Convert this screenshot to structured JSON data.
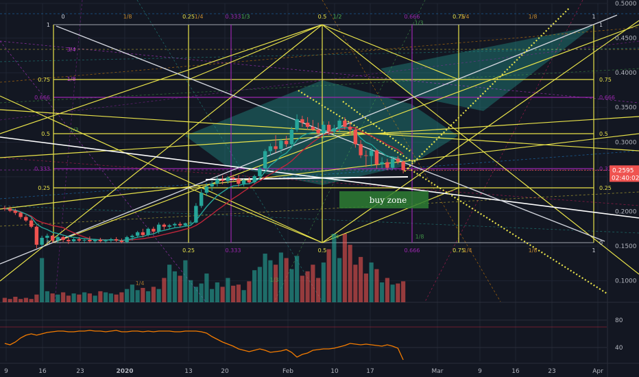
{
  "chart_data": {
    "type": "candlestick",
    "colors": {
      "background": "#131722",
      "grid": "#1f2433",
      "up": "#26a69a",
      "down": "#ef5350",
      "fib_grid": "#e9e34a",
      "sma": "#c0263a",
      "ema": "#26a69a",
      "rsi": "#f57c00",
      "trend_white": "#ffffff",
      "fan_fill": "#26a69a",
      "buy_zone_fill": "#2e7d32",
      "price_tag": "#ef5350",
      "midline_purple": "#9c27b0"
    },
    "x_axis": {
      "tick_labels": [
        "9",
        "16",
        "23",
        "2020",
        "13",
        "20",
        "Feb",
        "10",
        "17",
        "Mar",
        "9",
        "16",
        "23",
        "Apr"
      ]
    },
    "y_axis": {
      "tick_labels": [
        "0.5000",
        "0.4500",
        "0.4000",
        "0.3500",
        "0.3000",
        "0.2500",
        "0.2000",
        "0.1500",
        "0.1000"
      ],
      "ylim": [
        0.07,
        0.5
      ]
    },
    "rsi_axis": {
      "tick_labels": [
        "80",
        "40"
      ],
      "ylim": [
        20,
        100
      ]
    },
    "last_price": {
      "value": "0.2595",
      "countdown": "02:40:02"
    },
    "annotation_buy_zone": "buy zone",
    "fib_top_labels": [
      "0",
      "1/8",
      "0.25",
      "1/4",
      "0.333",
      "1/3",
      "0.5",
      "1/2",
      "0.666",
      "0.75",
      "1/4",
      "1/8",
      "1"
    ],
    "fib_bottom_labels": [
      "0.25",
      "0.333",
      "0.5",
      "0.666",
      "0.75",
      "1/4",
      "1/8",
      "1"
    ],
    "fib_left_labels": [
      "1",
      "0.75",
      "0.666",
      "0.5",
      "0.333",
      "0.25",
      "0"
    ],
    "fib_right_labels": [
      "1",
      "0.75",
      "0.666",
      "0.5",
      "0.333",
      "0.25",
      "0"
    ],
    "fib_extra_labels": [
      "3/4",
      "1/3",
      "1/8",
      "1/3",
      "1/8",
      "1/4",
      "1/3",
      "1/4"
    ],
    "candles": [
      {
        "i": 0,
        "o": 0.205,
        "h": 0.208,
        "l": 0.201,
        "c": 0.204
      },
      {
        "i": 1,
        "o": 0.204,
        "h": 0.207,
        "l": 0.199,
        "c": 0.201
      },
      {
        "i": 2,
        "o": 0.201,
        "h": 0.204,
        "l": 0.195,
        "c": 0.198
      },
      {
        "i": 3,
        "o": 0.198,
        "h": 0.2,
        "l": 0.189,
        "c": 0.192
      },
      {
        "i": 4,
        "o": 0.192,
        "h": 0.195,
        "l": 0.185,
        "c": 0.187
      },
      {
        "i": 5,
        "o": 0.187,
        "h": 0.19,
        "l": 0.176,
        "c": 0.178
      },
      {
        "i": 6,
        "o": 0.178,
        "h": 0.18,
        "l": 0.147,
        "c": 0.152
      },
      {
        "i": 7,
        "o": 0.152,
        "h": 0.165,
        "l": 0.149,
        "c": 0.162
      },
      {
        "i": 8,
        "o": 0.162,
        "h": 0.168,
        "l": 0.156,
        "c": 0.165
      },
      {
        "i": 9,
        "o": 0.165,
        "h": 0.166,
        "l": 0.155,
        "c": 0.158
      },
      {
        "i": 10,
        "o": 0.158,
        "h": 0.166,
        "l": 0.154,
        "c": 0.163
      },
      {
        "i": 11,
        "o": 0.163,
        "h": 0.165,
        "l": 0.156,
        "c": 0.159
      },
      {
        "i": 12,
        "o": 0.159,
        "h": 0.163,
        "l": 0.153,
        "c": 0.157
      },
      {
        "i": 13,
        "o": 0.157,
        "h": 0.162,
        "l": 0.155,
        "c": 0.16
      },
      {
        "i": 14,
        "o": 0.16,
        "h": 0.163,
        "l": 0.156,
        "c": 0.158
      },
      {
        "i": 15,
        "o": 0.158,
        "h": 0.161,
        "l": 0.154,
        "c": 0.159
      },
      {
        "i": 16,
        "o": 0.159,
        "h": 0.164,
        "l": 0.155,
        "c": 0.157
      },
      {
        "i": 17,
        "o": 0.157,
        "h": 0.16,
        "l": 0.154,
        "c": 0.159
      },
      {
        "i": 18,
        "o": 0.159,
        "h": 0.162,
        "l": 0.155,
        "c": 0.157
      },
      {
        "i": 19,
        "o": 0.157,
        "h": 0.16,
        "l": 0.154,
        "c": 0.158
      },
      {
        "i": 20,
        "o": 0.158,
        "h": 0.162,
        "l": 0.155,
        "c": 0.16
      },
      {
        "i": 21,
        "o": 0.16,
        "h": 0.163,
        "l": 0.156,
        "c": 0.158
      },
      {
        "i": 22,
        "o": 0.158,
        "h": 0.161,
        "l": 0.154,
        "c": 0.156
      },
      {
        "i": 23,
        "o": 0.156,
        "h": 0.165,
        "l": 0.154,
        "c": 0.163
      },
      {
        "i": 24,
        "o": 0.163,
        "h": 0.167,
        "l": 0.158,
        "c": 0.165
      },
      {
        "i": 25,
        "o": 0.165,
        "h": 0.172,
        "l": 0.162,
        "c": 0.17
      },
      {
        "i": 26,
        "o": 0.17,
        "h": 0.175,
        "l": 0.163,
        "c": 0.166
      },
      {
        "i": 27,
        "o": 0.166,
        "h": 0.177,
        "l": 0.164,
        "c": 0.175
      },
      {
        "i": 28,
        "o": 0.175,
        "h": 0.178,
        "l": 0.168,
        "c": 0.171
      },
      {
        "i": 29,
        "o": 0.171,
        "h": 0.184,
        "l": 0.168,
        "c": 0.181
      },
      {
        "i": 30,
        "o": 0.181,
        "h": 0.183,
        "l": 0.174,
        "c": 0.178
      },
      {
        "i": 31,
        "o": 0.178,
        "h": 0.182,
        "l": 0.175,
        "c": 0.18
      },
      {
        "i": 32,
        "o": 0.18,
        "h": 0.184,
        "l": 0.176,
        "c": 0.182
      },
      {
        "i": 33,
        "o": 0.182,
        "h": 0.185,
        "l": 0.177,
        "c": 0.18
      },
      {
        "i": 34,
        "o": 0.18,
        "h": 0.184,
        "l": 0.178,
        "c": 0.183
      },
      {
        "i": 35,
        "o": 0.183,
        "h": 0.187,
        "l": 0.181,
        "c": 0.184
      },
      {
        "i": 36,
        "o": 0.184,
        "h": 0.212,
        "l": 0.183,
        "c": 0.208
      },
      {
        "i": 37,
        "o": 0.208,
        "h": 0.232,
        "l": 0.205,
        "c": 0.227
      },
      {
        "i": 38,
        "o": 0.227,
        "h": 0.24,
        "l": 0.222,
        "c": 0.236
      },
      {
        "i": 39,
        "o": 0.236,
        "h": 0.244,
        "l": 0.23,
        "c": 0.24
      },
      {
        "i": 40,
        "o": 0.24,
        "h": 0.25,
        "l": 0.236,
        "c": 0.246
      },
      {
        "i": 41,
        "o": 0.246,
        "h": 0.252,
        "l": 0.239,
        "c": 0.244
      },
      {
        "i": 42,
        "o": 0.244,
        "h": 0.251,
        "l": 0.24,
        "c": 0.249
      },
      {
        "i": 43,
        "o": 0.249,
        "h": 0.253,
        "l": 0.244,
        "c": 0.247
      },
      {
        "i": 44,
        "o": 0.247,
        "h": 0.252,
        "l": 0.236,
        "c": 0.24
      },
      {
        "i": 45,
        "o": 0.24,
        "h": 0.247,
        "l": 0.236,
        "c": 0.245
      },
      {
        "i": 46,
        "o": 0.245,
        "h": 0.25,
        "l": 0.24,
        "c": 0.242
      },
      {
        "i": 47,
        "o": 0.242,
        "h": 0.253,
        "l": 0.24,
        "c": 0.251
      },
      {
        "i": 48,
        "o": 0.251,
        "h": 0.265,
        "l": 0.248,
        "c": 0.262
      },
      {
        "i": 49,
        "o": 0.262,
        "h": 0.29,
        "l": 0.26,
        "c": 0.287
      },
      {
        "i": 50,
        "o": 0.287,
        "h": 0.298,
        "l": 0.281,
        "c": 0.294
      },
      {
        "i": 51,
        "o": 0.294,
        "h": 0.31,
        "l": 0.285,
        "c": 0.29
      },
      {
        "i": 52,
        "o": 0.29,
        "h": 0.305,
        "l": 0.284,
        "c": 0.302
      },
      {
        "i": 53,
        "o": 0.302,
        "h": 0.309,
        "l": 0.293,
        "c": 0.297
      },
      {
        "i": 54,
        "o": 0.297,
        "h": 0.322,
        "l": 0.294,
        "c": 0.318
      },
      {
        "i": 55,
        "o": 0.318,
        "h": 0.34,
        "l": 0.315,
        "c": 0.333
      },
      {
        "i": 56,
        "o": 0.333,
        "h": 0.338,
        "l": 0.322,
        "c": 0.328
      },
      {
        "i": 57,
        "o": 0.328,
        "h": 0.336,
        "l": 0.318,
        "c": 0.322
      },
      {
        "i": 58,
        "o": 0.322,
        "h": 0.332,
        "l": 0.316,
        "c": 0.318
      },
      {
        "i": 59,
        "o": 0.318,
        "h": 0.328,
        "l": 0.31,
        "c": 0.313
      },
      {
        "i": 60,
        "o": 0.313,
        "h": 0.33,
        "l": 0.305,
        "c": 0.325
      },
      {
        "i": 61,
        "o": 0.325,
        "h": 0.33,
        "l": 0.31,
        "c": 0.315
      },
      {
        "i": 62,
        "o": 0.315,
        "h": 0.325,
        "l": 0.309,
        "c": 0.32
      },
      {
        "i": 63,
        "o": 0.32,
        "h": 0.334,
        "l": 0.314,
        "c": 0.331
      },
      {
        "i": 64,
        "o": 0.331,
        "h": 0.336,
        "l": 0.318,
        "c": 0.322
      },
      {
        "i": 65,
        "o": 0.322,
        "h": 0.33,
        "l": 0.31,
        "c": 0.318
      },
      {
        "i": 66,
        "o": 0.318,
        "h": 0.322,
        "l": 0.292,
        "c": 0.297
      },
      {
        "i": 67,
        "o": 0.297,
        "h": 0.303,
        "l": 0.277,
        "c": 0.281
      },
      {
        "i": 68,
        "o": 0.281,
        "h": 0.288,
        "l": 0.264,
        "c": 0.28
      },
      {
        "i": 69,
        "o": 0.28,
        "h": 0.292,
        "l": 0.265,
        "c": 0.288
      },
      {
        "i": 70,
        "o": 0.288,
        "h": 0.29,
        "l": 0.262,
        "c": 0.268
      },
      {
        "i": 71,
        "o": 0.268,
        "h": 0.278,
        "l": 0.262,
        "c": 0.271
      },
      {
        "i": 72,
        "o": 0.271,
        "h": 0.276,
        "l": 0.26,
        "c": 0.263
      },
      {
        "i": 73,
        "o": 0.263,
        "h": 0.278,
        "l": 0.26,
        "c": 0.276
      },
      {
        "i": 74,
        "o": 0.276,
        "h": 0.28,
        "l": 0.268,
        "c": 0.272
      },
      {
        "i": 75,
        "o": 0.272,
        "h": 0.274,
        "l": 0.255,
        "c": 0.2595
      }
    ],
    "volume": [
      4,
      3,
      5,
      3,
      4,
      3,
      7,
      40,
      10,
      8,
      7,
      9,
      6,
      8,
      7,
      9,
      8,
      6,
      10,
      9,
      8,
      7,
      9,
      12,
      16,
      11,
      13,
      10,
      14,
      12,
      22,
      34,
      28,
      24,
      38,
      20,
      14,
      17,
      26,
      12,
      18,
      14,
      22,
      15,
      16,
      11,
      19,
      29,
      32,
      44,
      38,
      34,
      45,
      40,
      30,
      42,
      24,
      28,
      34,
      22,
      36,
      48,
      62,
      40,
      62,
      52,
      34,
      41,
      26,
      36,
      30,
      18,
      22,
      16,
      17,
      19
    ],
    "rsi": [
      46,
      44,
      48,
      54,
      58,
      60,
      58,
      60,
      62,
      63,
      64,
      64,
      63,
      63,
      64,
      64,
      65,
      64,
      64,
      63,
      64,
      65,
      63,
      63,
      64,
      64,
      63,
      64,
      63,
      64,
      64,
      64,
      63,
      63,
      64,
      64,
      64,
      63,
      61,
      56,
      52,
      48,
      45,
      42,
      38,
      36,
      34,
      36,
      38,
      36,
      33,
      34,
      35,
      37,
      33,
      26,
      30,
      32,
      36,
      37,
      38,
      38,
      39,
      41,
      43,
      46,
      45,
      44,
      45,
      44,
      43,
      42,
      44,
      42,
      39,
      22
    ]
  }
}
